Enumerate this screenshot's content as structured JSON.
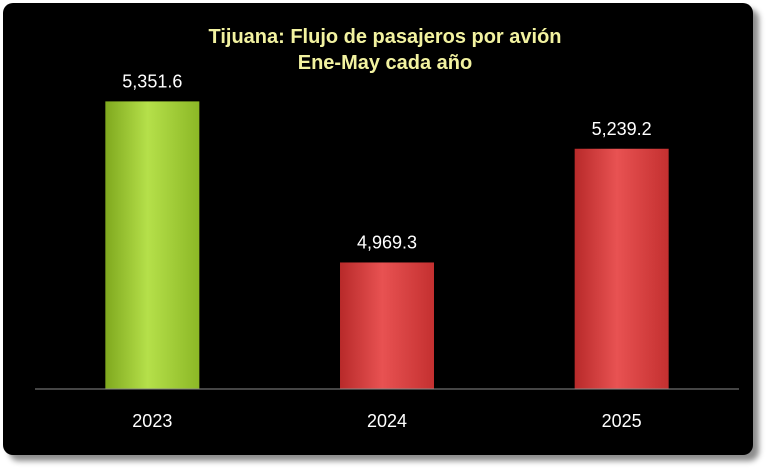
{
  "chart_data": {
    "type": "bar",
    "title": "Tijuana: Flujo de pasajeros por avión",
    "subtitle": "Ene-May cada año",
    "categories": [
      "2023",
      "2024",
      "2025"
    ],
    "values": [
      5351.6,
      4969.3,
      5239.2
    ],
    "value_labels": [
      "5,351.6",
      "4,969.3",
      "5,239.2"
    ],
    "colors": [
      "#9acd32",
      "#d93b3b",
      "#d93b3b"
    ],
    "xlabel": "",
    "ylabel": "",
    "grid": false,
    "legend": "none"
  }
}
